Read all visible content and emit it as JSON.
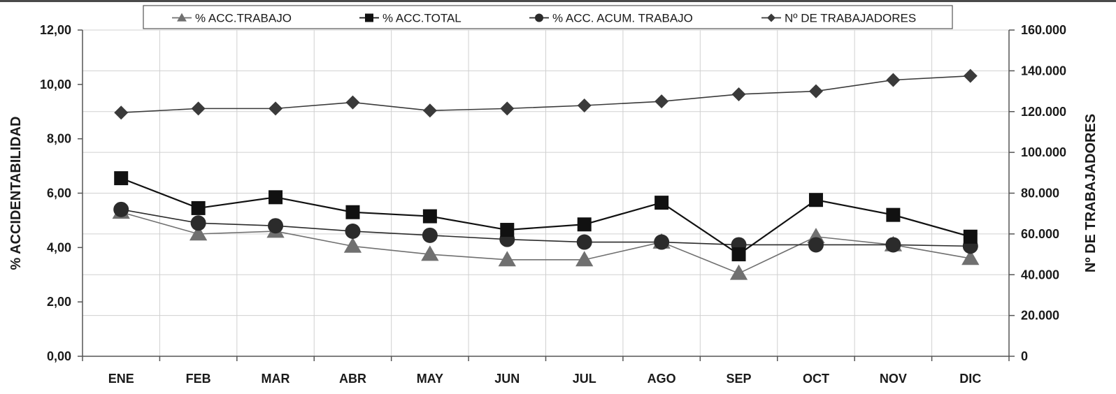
{
  "chart_data": {
    "type": "line",
    "categories": [
      "ENE",
      "FEB",
      "MAR",
      "ABR",
      "MAY",
      "JUN",
      "JUL",
      "AGO",
      "SEP",
      "OCT",
      "NOV",
      "DIC"
    ],
    "ylabel": "% ACCIDENTABILIDAD",
    "ylim": [
      0,
      12
    ],
    "yticks": [
      "0,00",
      "2,00",
      "4,00",
      "6,00",
      "8,00",
      "10,00",
      "12,00"
    ],
    "y2label": "Nº DE TRABAJADORES",
    "y2lim": [
      0,
      160000
    ],
    "y2ticks": [
      "0",
      "20.000",
      "40.000",
      "60.000",
      "80.000",
      "100.000",
      "120.000",
      "140.000",
      "160.000"
    ],
    "grid": true,
    "legend_position": "top",
    "series": [
      {
        "name": "% ACC.TRABAJO",
        "axis": "left",
        "marker": "triangle",
        "color": "#707070",
        "values": [
          5.3,
          4.5,
          4.6,
          4.05,
          3.75,
          3.55,
          3.55,
          4.2,
          3.05,
          4.4,
          4.1,
          3.6
        ]
      },
      {
        "name": "% ACC.TOTAL",
        "axis": "left",
        "marker": "square",
        "color": "#111111",
        "values": [
          6.55,
          5.45,
          5.85,
          5.3,
          5.15,
          4.65,
          4.85,
          5.65,
          3.75,
          5.75,
          5.2,
          4.4
        ]
      },
      {
        "name": "% ACC. ACUM. TRABAJO",
        "axis": "left",
        "marker": "circle",
        "color": "#2b2b2b",
        "values": [
          5.4,
          4.9,
          4.8,
          4.6,
          4.45,
          4.3,
          4.2,
          4.2,
          4.1,
          4.1,
          4.1,
          4.05
        ]
      },
      {
        "name": "Nº DE TRABAJADORES",
        "axis": "right",
        "marker": "diamond",
        "color": "#3a3a3a",
        "values": [
          119500,
          121500,
          121500,
          124500,
          120500,
          121500,
          123000,
          125000,
          128500,
          130000,
          135500,
          137500
        ]
      }
    ]
  }
}
